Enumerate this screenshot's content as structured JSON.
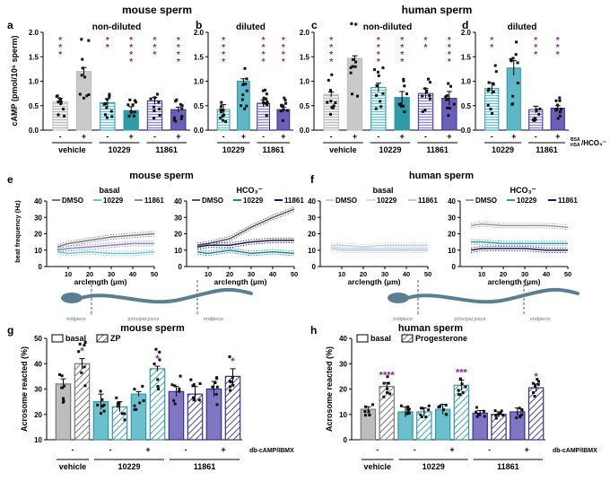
{
  "colors": {
    "vehicle": "#bdbdbd",
    "c10229": "#2e9aa8",
    "c11861": "#3a2f91",
    "sig": "#8a2a8a",
    "fill10229": "#d8f1f3",
    "fill11861": "#dedcf2",
    "hatch10229": "#8fd3dc",
    "hatch11861": "#9088d0"
  },
  "titles": {
    "top_left": "mouse sperm",
    "top_right": "human sperm",
    "mid_left": "mouse sperm",
    "mid_right": "human sperm",
    "bot_left": "mouse sperm",
    "bot_right": "human sperm"
  },
  "letters": [
    "a",
    "b",
    "c",
    "d",
    "e",
    "f",
    "g",
    "h"
  ],
  "watermark": "",
  "chart_data": [
    {
      "panel": "a",
      "type": "bar",
      "title": "non-diluted",
      "ylabel": "cAMP (pmol/10⁶ sperm)",
      "ylim": [
        0,
        2.0
      ],
      "yticks": [
        "0.0",
        "0.5",
        "1.0",
        "1.5",
        "2.0"
      ],
      "bars": [
        {
          "group": "vehicle",
          "hco3": "-",
          "value": 0.58,
          "err": 0.07,
          "sig": ""
        },
        {
          "group": "vehicle",
          "hco3": "+",
          "value": 1.2,
          "err": 0.08,
          "sig": ""
        },
        {
          "group": "10229",
          "hco3": "-",
          "value": 0.56,
          "err": 0.08,
          "sig": "**"
        },
        {
          "group": "10229",
          "hco3": "+",
          "value": 0.4,
          "err": 0.08,
          "sig": "****"
        },
        {
          "group": "11861",
          "hco3": "-",
          "value": 0.6,
          "err": 0.07,
          "sig": "***"
        },
        {
          "group": "11861",
          "hco3": "+",
          "value": 0.42,
          "err": 0.05,
          "sig": "****"
        }
      ],
      "sig_vehicle_minus": "***",
      "group_labels": [
        "vehicle",
        "10229",
        "11861"
      ]
    },
    {
      "panel": "b",
      "type": "bar",
      "title": "diluted",
      "ylim": [
        0,
        2.0
      ],
      "yticks": [
        "0.0",
        "0.5",
        "1.0",
        "1.5",
        "2.0"
      ],
      "bars": [
        {
          "group": "10229",
          "hco3": "-",
          "value": 0.42,
          "err": 0.1,
          "sig": "****"
        },
        {
          "group": "10229",
          "hco3": "+",
          "value": 1.0,
          "err": 0.05,
          "sig": ""
        },
        {
          "group": "11861",
          "hco3": "-",
          "value": 0.55,
          "err": 0.07,
          "sig": "****"
        },
        {
          "group": "11861",
          "hco3": "+",
          "value": 0.42,
          "err": 0.05,
          "sig": "****"
        }
      ],
      "group_labels": [
        "10229",
        "11861"
      ]
    },
    {
      "panel": "c",
      "type": "bar",
      "title": "non-diluted",
      "ylim": [
        0,
        2.0
      ],
      "yticks": [
        "0.0",
        "0.5",
        "1.0",
        "1.5",
        "2.0"
      ],
      "bars": [
        {
          "group": "vehicle",
          "hco3": "-",
          "value": 0.73,
          "err": 0.05,
          "sig": "****"
        },
        {
          "group": "vehicle",
          "hco3": "+",
          "value": 1.47,
          "err": 0.05,
          "sig": ""
        },
        {
          "group": "10229",
          "hco3": "-",
          "value": 0.87,
          "err": 0.09,
          "sig": "****"
        },
        {
          "group": "10229",
          "hco3": "+",
          "value": 0.67,
          "err": 0.12,
          "sig": "****"
        },
        {
          "group": "11861",
          "hco3": "-",
          "value": 0.75,
          "err": 0.1,
          "sig": "**"
        },
        {
          "group": "11861",
          "hco3": "+",
          "value": 0.65,
          "err": 0.14,
          "sig": "****"
        }
      ],
      "group_labels": [
        "vehicle",
        "10229",
        "11861"
      ]
    },
    {
      "panel": "d",
      "type": "bar",
      "title": "diluted",
      "ylim": [
        0,
        2.0
      ],
      "yticks": [
        "0.0",
        "0.5",
        "1.0",
        "1.5",
        "2.0"
      ],
      "bars": [
        {
          "group": "10229",
          "hco3": "-",
          "value": 0.85,
          "err": 0.12,
          "sig": "**"
        },
        {
          "group": "10229",
          "hco3": "+",
          "value": 1.27,
          "err": 0.15,
          "sig": ""
        },
        {
          "group": "11861",
          "hco3": "-",
          "value": 0.42,
          "err": 0.07,
          "sig": "***"
        },
        {
          "group": "11861",
          "hco3": "+",
          "value": 0.45,
          "err": 0.05,
          "sig": "***"
        }
      ],
      "group_labels": [
        "10229",
        "11861"
      ],
      "axis_note_top": "BSA",
      "axis_note_bottom": "HSA",
      "axis_note_suffix": "/HCO₃⁻"
    },
    {
      "panel": "e",
      "type": "line",
      "subpanels": [
        {
          "title": "basal",
          "legend": [
            "DMSO",
            "10229",
            "11861"
          ],
          "series": [
            {
              "name": "DMSO",
              "y": [
                12,
                14,
                16,
                18,
                19,
                20
              ]
            },
            {
              "name": "10229",
              "y": [
                9,
                8,
                9,
                8,
                8,
                9
              ]
            },
            {
              "name": "11861",
              "y": [
                10,
                11,
                12,
                13,
                14,
                14
              ]
            }
          ]
        },
        {
          "title": "HCO₃⁻",
          "legend": [
            "DMSO",
            "10229",
            "11861"
          ],
          "series": [
            {
              "name": "DMSO",
              "y": [
                13,
                14,
                17,
                24,
                30,
                35
              ]
            },
            {
              "name": "10229",
              "y": [
                9,
                8,
                10,
                8,
                9,
                8
              ]
            },
            {
              "name": "11861",
              "y": [
                12,
                13,
                13,
                15,
                16,
                16
              ]
            }
          ]
        }
      ],
      "x": [
        5,
        10,
        20,
        30,
        40,
        50
      ],
      "xlabel": "arclength (μm)",
      "ylabel": "beat frequency (Hz)",
      "ylim": [
        0,
        40
      ],
      "yticks": [
        "0",
        "10",
        "20",
        "30",
        "40"
      ],
      "xticks": [
        "10",
        "20",
        "30",
        "40",
        "50"
      ]
    },
    {
      "panel": "f",
      "type": "line",
      "subpanels": [
        {
          "title": "basal",
          "legend": [
            "DMSO",
            "10229",
            "11861"
          ],
          "series": [
            {
              "name": "DMSO",
              "y": [
                13,
                13,
                12,
                13,
                13,
                13
              ]
            },
            {
              "name": "10229",
              "y": [
                12,
                11,
                11,
                11,
                11,
                11
              ]
            },
            {
              "name": "11861",
              "y": [
                11,
                10,
                10,
                10,
                10,
                10
              ]
            }
          ]
        },
        {
          "title": "HCO₃⁻",
          "legend": [
            "DMSO",
            "10229",
            "11861"
          ],
          "series": [
            {
              "name": "DMSO",
              "y": [
                25,
                26,
                25,
                25,
                25,
                24
              ]
            },
            {
              "name": "10229",
              "y": [
                15,
                15,
                14,
                14,
                14,
                14
              ]
            },
            {
              "name": "11861",
              "y": [
                10,
                11,
                11,
                11,
                10,
                10
              ]
            }
          ]
        }
      ],
      "x": [
        5,
        10,
        20,
        30,
        40,
        50
      ],
      "xlabel": "arclength (μm)",
      "ylim": [
        0,
        40
      ],
      "yticks": [
        "0",
        "10",
        "20",
        "30",
        "40"
      ],
      "xticks": [
        "10",
        "20",
        "30",
        "40",
        "50"
      ]
    },
    {
      "panel": "g",
      "type": "bar",
      "ylabel": "Acrosome reacted (%)",
      "ylim": [
        10,
        50
      ],
      "yticks": [
        "10",
        "20",
        "30",
        "40",
        "50"
      ],
      "legend": [
        "basal",
        "ZP"
      ],
      "bars": [
        {
          "group": "vehicle",
          "camp": "-",
          "stim": "basal",
          "value": 32,
          "err": 2,
          "sig": ""
        },
        {
          "group": "vehicle",
          "camp": "-",
          "stim": "ZP",
          "value": 40,
          "err": 2,
          "sig": "*"
        },
        {
          "group": "10229",
          "camp": "-",
          "stim": "basal",
          "value": 25,
          "err": 3,
          "sig": ""
        },
        {
          "group": "10229",
          "camp": "-",
          "stim": "ZP",
          "value": 23,
          "err": 2,
          "sig": ""
        },
        {
          "group": "10229",
          "camp": "+",
          "stim": "basal",
          "value": 28,
          "err": 1,
          "sig": ""
        },
        {
          "group": "10229",
          "camp": "+",
          "stim": "ZP",
          "value": 38,
          "err": 1,
          "sig": "*"
        },
        {
          "group": "11861",
          "camp": "-",
          "stim": "basal",
          "value": 29,
          "err": 2,
          "sig": ""
        },
        {
          "group": "11861",
          "camp": "-",
          "stim": "ZP",
          "value": 28,
          "err": 3,
          "sig": ""
        },
        {
          "group": "11861",
          "camp": "+",
          "stim": "basal",
          "value": 30,
          "err": 3,
          "sig": ""
        },
        {
          "group": "11861",
          "camp": "+",
          "stim": "ZP",
          "value": 35,
          "err": 3,
          "sig": "*"
        }
      ],
      "group_labels": [
        "vehicle",
        "10229",
        "11861"
      ],
      "row_label": "db-cAMP/IBMX"
    },
    {
      "panel": "h",
      "type": "bar",
      "ylabel": "Acrosome reacted (%)",
      "ylim": [
        0,
        40
      ],
      "yticks": [
        "0",
        "10",
        "20",
        "30",
        "40"
      ],
      "legend": [
        "basal",
        "Progesterone"
      ],
      "bars": [
        {
          "group": "vehicle",
          "camp": "-",
          "stim": "basal",
          "value": 12,
          "err": 1,
          "sig": ""
        },
        {
          "group": "vehicle",
          "camp": "-",
          "stim": "Progesterone",
          "value": 21,
          "err": 1.5,
          "sig": "****"
        },
        {
          "group": "10229",
          "camp": "-",
          "stim": "basal",
          "value": 11,
          "err": 2,
          "sig": ""
        },
        {
          "group": "10229",
          "camp": "-",
          "stim": "Progesterone",
          "value": 11,
          "err": 1.5,
          "sig": ""
        },
        {
          "group": "10229",
          "camp": "+",
          "stim": "basal",
          "value": 12,
          "err": 2,
          "sig": ""
        },
        {
          "group": "10229",
          "camp": "+",
          "stim": "Progesterone",
          "value": 21.5,
          "err": 2,
          "sig": "***"
        },
        {
          "group": "11861",
          "camp": "-",
          "stim": "basal",
          "value": 10.5,
          "err": 1,
          "sig": ""
        },
        {
          "group": "11861",
          "camp": "-",
          "stim": "Progesterone",
          "value": 10,
          "err": 1,
          "sig": ""
        },
        {
          "group": "11861",
          "camp": "+",
          "stim": "basal",
          "value": 11,
          "err": 1.5,
          "sig": ""
        },
        {
          "group": "11861",
          "camp": "+",
          "stim": "Progesterone",
          "value": 20.5,
          "err": 1.5,
          "sig": "*"
        }
      ],
      "group_labels": [
        "vehicle",
        "10229",
        "11861"
      ],
      "row_label": "db-cAMP/IBMX"
    }
  ],
  "schematic": {
    "labels": [
      "midpiece",
      "principal piece",
      "endpiece"
    ]
  }
}
